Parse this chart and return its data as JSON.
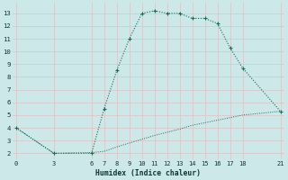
{
  "xlabel": "Humidex (Indice chaleur)",
  "bg_color": "#cce8e8",
  "grid_color": "#b8d8d8",
  "line_color": "#1a6b5a",
  "line1_x": [
    0,
    3,
    6,
    7,
    8,
    9,
    10,
    11,
    12,
    13,
    14,
    15,
    16,
    17,
    18,
    21
  ],
  "line1_y": [
    4.0,
    2.0,
    2.0,
    5.5,
    8.5,
    11.0,
    13.0,
    13.2,
    13.0,
    13.0,
    12.6,
    12.6,
    12.2,
    10.3,
    8.7,
    5.3
  ],
  "line2_x": [
    0,
    3,
    6,
    7,
    8,
    9,
    10,
    11,
    12,
    13,
    14,
    15,
    16,
    17,
    18,
    21
  ],
  "line2_y": [
    4.0,
    2.0,
    2.05,
    2.15,
    2.5,
    2.8,
    3.1,
    3.4,
    3.65,
    3.9,
    4.2,
    4.4,
    4.6,
    4.8,
    5.0,
    5.3
  ],
  "xlim": [
    -0.3,
    21.3
  ],
  "ylim": [
    1.5,
    13.8
  ],
  "xticks": [
    0,
    3,
    6,
    7,
    8,
    9,
    10,
    11,
    12,
    13,
    14,
    15,
    16,
    17,
    18,
    21
  ],
  "yticks": [
    2,
    3,
    4,
    5,
    6,
    7,
    8,
    9,
    10,
    11,
    12,
    13
  ]
}
